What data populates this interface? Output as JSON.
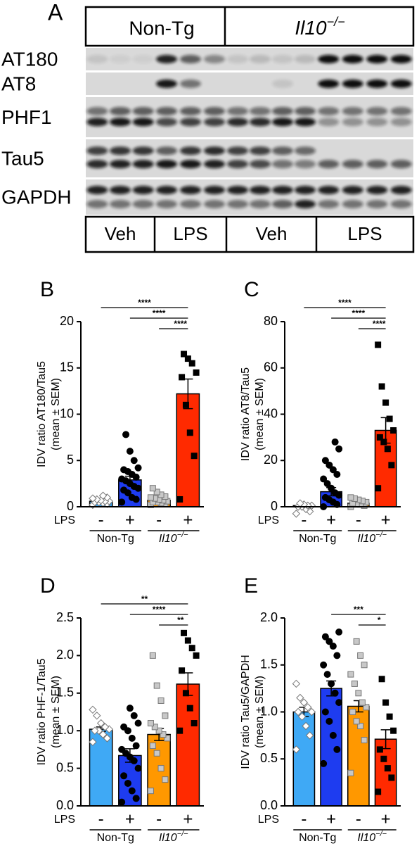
{
  "panel_a": {
    "panel": "A",
    "header": [
      "Non-Tg",
      {
        "label": "Il10",
        "sup": "−/−"
      }
    ],
    "rows": [
      "AT180",
      "AT8",
      "PHF1",
      "Tau5",
      "GAPDH"
    ],
    "treatments": [
      "Veh",
      "LPS",
      "Veh",
      "LPS"
    ]
  },
  "chart_data": [
    {
      "type": "bar",
      "panel": "B",
      "y_label": [
        "IDV ratio AT180/Tau5",
        "(mean ± SEM)"
      ],
      "ylim": [
        0,
        20
      ],
      "yticks": [
        0,
        5,
        10,
        15,
        20
      ],
      "row_label": "LPS",
      "categories": [
        "-",
        "+",
        "-",
        "+"
      ],
      "groups": [
        {
          "label": "Non-Tg"
        },
        {
          "label": "Il10",
          "sup": "−/−"
        }
      ],
      "colors": [
        "#3fa9f5",
        "#1e3cf0",
        "#ff9800",
        "#ff2a00"
      ],
      "values": [
        0.6,
        2.9,
        0.7,
        12.2
      ],
      "errors": [
        0.1,
        0.4,
        0.15,
        1.6
      ],
      "point_markers": [
        "diamond",
        "circle",
        "square",
        "square"
      ],
      "point_colors": [
        "#ffffff",
        "#000000",
        "#c8c8c8",
        "#000000"
      ],
      "points": [
        [
          0.2,
          0.3,
          0.4,
          0.5,
          0.5,
          0.6,
          0.6,
          0.7,
          0.8,
          0.9,
          1.0,
          1.2
        ],
        [
          0.5,
          0.8,
          1.0,
          1.5,
          1.8,
          2.0,
          2.2,
          2.5,
          2.8,
          3.0,
          3.2,
          3.5,
          3.8,
          4.0,
          4.2,
          5.0,
          6.0,
          7.8
        ],
        [
          0.2,
          0.3,
          0.4,
          0.5,
          0.5,
          0.6,
          0.7,
          0.8,
          0.9,
          1.0,
          1.1,
          1.3,
          1.6,
          2.0
        ],
        [
          0.8,
          5.5,
          8.0,
          11.0,
          14.0,
          14.5,
          15.5,
          16.0,
          16.5
        ]
      ],
      "comparisons": [
        {
          "label": "****",
          "groups": [
            0,
            3
          ]
        },
        {
          "label": "****",
          "groups": [
            1,
            3
          ]
        },
        {
          "label": "****",
          "groups": [
            2,
            3
          ]
        }
      ]
    },
    {
      "type": "bar",
      "panel": "C",
      "y_label": [
        "IDV ratio AT8/Tau5",
        "(mean ± SEM)"
      ],
      "ylim": [
        0,
        80
      ],
      "yticks": [
        0,
        20,
        40,
        60,
        80
      ],
      "row_label": "LPS",
      "categories": [
        "-",
        "+",
        "-",
        "+"
      ],
      "groups": [
        {
          "label": "Non-Tg"
        },
        {
          "label": "Il10",
          "sup": "−/−"
        }
      ],
      "colors": [
        "#3fa9f5",
        "#1e3cf0",
        "#ff9800",
        "#ff2a00"
      ],
      "values": [
        0.5,
        6.5,
        1.5,
        33
      ],
      "errors": [
        0.3,
        1.8,
        0.4,
        5.5
      ],
      "point_markers": [
        "diamond",
        "circle",
        "square",
        "square"
      ],
      "point_colors": [
        "#ffffff",
        "#000000",
        "#c8c8c8",
        "#000000"
      ],
      "points": [
        [
          -3,
          -2,
          -1,
          0,
          0,
          0.5,
          0.5,
          1,
          1.5
        ],
        [
          0,
          1,
          2,
          3,
          4,
          5,
          6,
          8,
          10,
          12,
          14,
          16,
          18,
          20,
          25,
          28
        ],
        [
          0,
          0.5,
          1,
          1,
          1.5,
          2,
          2.5,
          3,
          3.5,
          4
        ],
        [
          8,
          18,
          25,
          28,
          30,
          33,
          38,
          45,
          52,
          70
        ]
      ],
      "comparisons": [
        {
          "label": "****",
          "groups": [
            0,
            3
          ]
        },
        {
          "label": "****",
          "groups": [
            1,
            3
          ]
        },
        {
          "label": "****",
          "groups": [
            2,
            3
          ]
        }
      ]
    },
    {
      "type": "bar",
      "panel": "D",
      "y_label": [
        "IDV ratio PHF-1/Tau5",
        "(mean ± SEM)"
      ],
      "ylim": [
        0,
        2.5
      ],
      "yticks": [
        {
          "value": 0,
          "label": "0.0"
        },
        {
          "value": 0.5,
          "label": "0.5"
        },
        {
          "value": 1,
          "label": "1.0"
        },
        {
          "value": 1.5,
          "label": "1.5"
        },
        {
          "value": 2,
          "label": "2.0"
        },
        {
          "value": 2.5,
          "label": "2.5"
        }
      ],
      "row_label": "LPS",
      "categories": [
        "-",
        "+",
        "-",
        "+"
      ],
      "groups": [
        {
          "label": "Non-Tg"
        },
        {
          "label": "Il10",
          "sup": "−/−"
        }
      ],
      "colors": [
        "#3fa9f5",
        "#1e3cf0",
        "#ff9800",
        "#ff2a00"
      ],
      "values": [
        1.02,
        0.67,
        0.95,
        1.62
      ],
      "errors": [
        0.03,
        0.09,
        0.08,
        0.15
      ],
      "point_markers": [
        "diamond",
        "circle",
        "square",
        "square"
      ],
      "point_colors": [
        "#ffffff",
        "#000000",
        "#c8c8c8",
        "#000000"
      ],
      "points": [
        [
          0.85,
          0.9,
          0.95,
          1.0,
          1.0,
          1.02,
          1.05,
          1.1,
          1.2,
          1.28
        ],
        [
          0.05,
          0.1,
          0.2,
          0.3,
          0.4,
          0.5,
          0.6,
          0.65,
          0.7,
          0.75,
          0.8,
          0.9,
          1.0,
          1.05,
          1.1,
          1.2,
          1.3
        ],
        [
          0.2,
          0.35,
          0.5,
          0.7,
          0.8,
          0.9,
          0.95,
          1.0,
          1.05,
          1.1,
          1.2,
          1.4,
          1.6,
          2.0
        ],
        [
          1.0,
          1.1,
          1.3,
          1.5,
          1.8,
          2.0,
          2.1,
          2.2,
          2.3
        ]
      ],
      "comparisons": [
        {
          "label": "**",
          "groups": [
            0,
            3
          ]
        },
        {
          "label": "****",
          "groups": [
            1,
            3
          ]
        },
        {
          "label": "**",
          "groups": [
            2,
            3
          ]
        }
      ]
    },
    {
      "type": "bar",
      "panel": "E",
      "y_label": [
        "IDV ratio Tau5/GAPDH",
        "(mean ± SEM)"
      ],
      "ylim": [
        0,
        2.0
      ],
      "yticks": [
        {
          "value": 0,
          "label": "0.0"
        },
        {
          "value": 0.5,
          "label": "0.5"
        },
        {
          "value": 1,
          "label": "1.0"
        },
        {
          "value": 1.5,
          "label": "1.5"
        },
        {
          "value": 2,
          "label": "2.0"
        }
      ],
      "row_label": "LPS",
      "categories": [
        "-",
        "+",
        "-",
        "+"
      ],
      "groups": [
        {
          "label": "Non-Tg"
        },
        {
          "label": "Il10",
          "sup": "−/−"
        }
      ],
      "colors": [
        "#3fa9f5",
        "#1e3cf0",
        "#ff9800",
        "#ff2a00"
      ],
      "values": [
        1.0,
        1.25,
        1.06,
        0.71
      ],
      "errors": [
        0.05,
        0.08,
        0.06,
        0.1
      ],
      "point_markers": [
        "diamond",
        "circle",
        "square",
        "square"
      ],
      "point_colors": [
        "#ffffff",
        "#000000",
        "#c8c8c8",
        "#000000"
      ],
      "points": [
        [
          0.6,
          0.75,
          0.85,
          0.95,
          1.0,
          1.0,
          1.05,
          1.1,
          1.15,
          1.3
        ],
        [
          0.45,
          0.6,
          0.75,
          0.9,
          1.0,
          1.1,
          1.2,
          1.3,
          1.4,
          1.5,
          1.6,
          1.7,
          1.75,
          1.8,
          1.85
        ],
        [
          0.35,
          0.7,
          0.85,
          0.9,
          1.0,
          1.05,
          1.1,
          1.2,
          1.3,
          1.4,
          1.5,
          1.6,
          1.75
        ],
        [
          0.15,
          0.3,
          0.4,
          0.5,
          0.6,
          0.8,
          0.95,
          1.1,
          1.35
        ]
      ],
      "comparisons": [
        {
          "label": "***",
          "groups": [
            1,
            3
          ]
        },
        {
          "label": "*",
          "groups": [
            2,
            3
          ]
        }
      ]
    }
  ]
}
